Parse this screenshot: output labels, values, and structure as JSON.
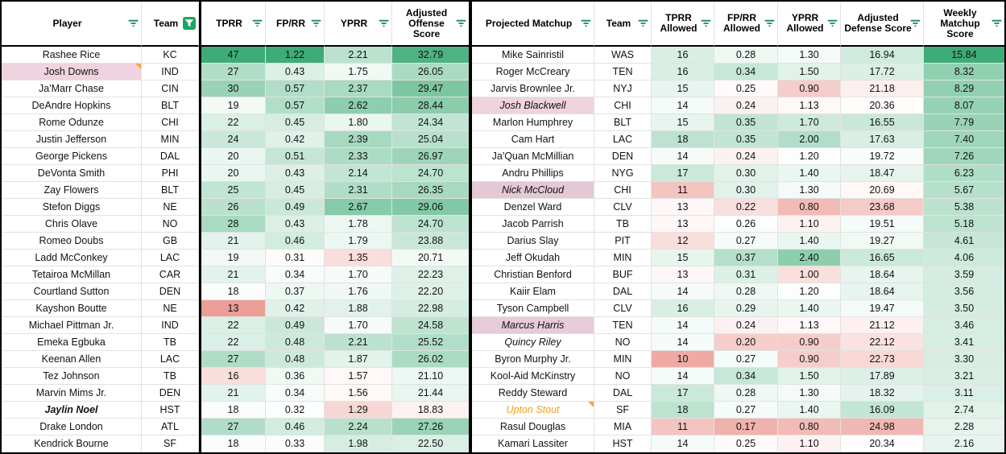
{
  "colors": {
    "scale_green": "#3EAC77",
    "scale_red": "#E67C73",
    "filter_icon_green": "#168A52",
    "filter_active_bg": "#1FA463",
    "note_orange": "#F6A73C",
    "gridline": "#E2E2E2",
    "frame_black": "#000000",
    "highlight_pink": "#EFD3DE",
    "highlight_pink_dark": "#E4C8D5",
    "orange_player_text": "#F49D1E"
  },
  "left_table": {
    "headers": [
      {
        "label": "Player",
        "filter": "normal"
      },
      {
        "label": "Team",
        "filter": "active"
      },
      {
        "label": "TPRR",
        "filter": "normal"
      },
      {
        "label": "FP/RR",
        "filter": "normal"
      },
      {
        "label": "YPRR",
        "filter": "normal"
      },
      {
        "label": "Adjusted Offense Score",
        "filter": "normal"
      }
    ],
    "scales": [
      {
        "min": 11.5,
        "mid": 17.5,
        "max": 41
      },
      {
        "min": 0.15,
        "mid": 0.315,
        "max": 0.95
      },
      {
        "min": 0.55,
        "mid": 1.62,
        "max": 3.3
      },
      {
        "min": 10,
        "mid": 19.8,
        "max": 34
      }
    ],
    "rows": [
      {
        "cells": [
          "Rashee Rice",
          "KC",
          "47",
          "1.22",
          "2.21",
          "32.79"
        ]
      },
      {
        "cells": [
          "Josh Downs",
          "IND",
          "27",
          "0.43",
          "1.75",
          "26.05"
        ],
        "style": {
          "bg": "#EFD3DE",
          "note": true
        }
      },
      {
        "cells": [
          "Ja'Marr Chase",
          "CIN",
          "30",
          "0.57",
          "2.37",
          "29.47"
        ]
      },
      {
        "cells": [
          "DeAndre Hopkins",
          "BLT",
          "19",
          "0.57",
          "2.62",
          "28.44"
        ]
      },
      {
        "cells": [
          "Rome Odunze",
          "CHI",
          "22",
          "0.45",
          "1.80",
          "24.34"
        ]
      },
      {
        "cells": [
          "Justin Jefferson",
          "MIN",
          "24",
          "0.42",
          "2.39",
          "25.04"
        ]
      },
      {
        "cells": [
          "George Pickens",
          "DAL",
          "20",
          "0.51",
          "2.33",
          "26.97"
        ]
      },
      {
        "cells": [
          "DeVonta Smith",
          "PHI",
          "20",
          "0.43",
          "2.14",
          "24.70"
        ]
      },
      {
        "cells": [
          "Zay Flowers",
          "BLT",
          "25",
          "0.45",
          "2.31",
          "26.35"
        ]
      },
      {
        "cells": [
          "Stefon Diggs",
          "NE",
          "26",
          "0.49",
          "2.67",
          "29.06"
        ]
      },
      {
        "cells": [
          "Chris Olave",
          "NO",
          "28",
          "0.43",
          "1.78",
          "24.70"
        ]
      },
      {
        "cells": [
          "Romeo Doubs",
          "GB",
          "21",
          "0.46",
          "1.79",
          "23.88"
        ]
      },
      {
        "cells": [
          "Ladd McConkey",
          "LAC",
          "19",
          "0.31",
          "1.35",
          "20.71"
        ]
      },
      {
        "cells": [
          "Tetairoa McMillan",
          "CAR",
          "21",
          "0.34",
          "1.70",
          "22.23"
        ]
      },
      {
        "cells": [
          "Courtland Sutton",
          "DEN",
          "18",
          "0.37",
          "1.76",
          "22.20"
        ]
      },
      {
        "cells": [
          "Kayshon Boutte",
          "NE",
          "13",
          "0.42",
          "1.88",
          "22.98"
        ]
      },
      {
        "cells": [
          "Michael Pittman Jr.",
          "IND",
          "22",
          "0.49",
          "1.70",
          "24.58"
        ]
      },
      {
        "cells": [
          "Emeka Egbuka",
          "TB",
          "22",
          "0.48",
          "2.21",
          "25.52"
        ]
      },
      {
        "cells": [
          "Keenan Allen",
          "LAC",
          "27",
          "0.48",
          "1.87",
          "26.02"
        ]
      },
      {
        "cells": [
          "Tez Johnson",
          "TB",
          "16",
          "0.36",
          "1.57",
          "21.10"
        ]
      },
      {
        "cells": [
          "Marvin Mims Jr.",
          "DEN",
          "21",
          "0.34",
          "1.56",
          "21.44"
        ]
      },
      {
        "cells": [
          "Jaylin Noel",
          "HST",
          "18",
          "0.32",
          "1.29",
          "18.83"
        ],
        "style": {
          "bold": true,
          "italic": true
        }
      },
      {
        "cells": [
          "Drake London",
          "ATL",
          "27",
          "0.46",
          "2.24",
          "27.26"
        ]
      },
      {
        "cells": [
          "Kendrick Bourne",
          "SF",
          "18",
          "0.33",
          "1.98",
          "22.50"
        ]
      }
    ]
  },
  "right_table": {
    "headers": [
      {
        "label": "Projected Matchup",
        "filter": "normal"
      },
      {
        "label": "Team",
        "filter": "normal"
      },
      {
        "label": "TPRR Allowed",
        "filter": "normal"
      },
      {
        "label": "FP/RR Allowed",
        "filter": "normal"
      },
      {
        "label": "YPRR Allowed",
        "filter": "normal"
      },
      {
        "label": "Adjusted Defense Score",
        "filter": "normal"
      },
      {
        "label": "Weekly Matchup Score",
        "filter": "normal"
      }
    ],
    "scales": [
      {
        "min": 8.2,
        "mid": 13.3,
        "max": 27
      },
      {
        "min": 0.11,
        "mid": 0.255,
        "max": 0.55
      },
      {
        "min": 0.46,
        "mid": 1.17,
        "max": 3.25
      },
      {
        "min": 7,
        "mid": 20.2,
        "max": 28.9,
        "invert": true
      },
      {
        "min": -13,
        "mid": 0.5,
        "max": 14.3
      }
    ],
    "rows": [
      {
        "cells": [
          "Mike Sainristil",
          "WAS",
          "16",
          "0.28",
          "1.30",
          "16.94",
          "15.84"
        ]
      },
      {
        "cells": [
          "Roger McCreary",
          "TEN",
          "16",
          "0.34",
          "1.50",
          "17.72",
          "8.32"
        ]
      },
      {
        "cells": [
          "Jarvis Brownlee Jr.",
          "NYJ",
          "15",
          "0.25",
          "0.90",
          "21.18",
          "8.29"
        ]
      },
      {
        "cells": [
          "Josh Blackwell",
          "CHI",
          "14",
          "0.24",
          "1.13",
          "20.36",
          "8.07"
        ],
        "style": {
          "italic": true,
          "bg": "#EFD3DE"
        }
      },
      {
        "cells": [
          "Marlon Humphrey",
          "BLT",
          "15",
          "0.35",
          "1.70",
          "16.55",
          "7.79"
        ]
      },
      {
        "cells": [
          "Cam Hart",
          "LAC",
          "18",
          "0.35",
          "2.00",
          "17.63",
          "7.40"
        ]
      },
      {
        "cells": [
          "Ja'Quan McMillian",
          "DEN",
          "14",
          "0.24",
          "1.20",
          "19.72",
          "7.26"
        ]
      },
      {
        "cells": [
          "Andru Phillips",
          "NYG",
          "17",
          "0.30",
          "1.40",
          "18.47",
          "6.23"
        ]
      },
      {
        "cells": [
          "Nick McCloud",
          "CHI",
          "11",
          "0.30",
          "1.30",
          "20.69",
          "5.67"
        ],
        "style": {
          "italic": true,
          "bg": "#E4C8D5"
        }
      },
      {
        "cells": [
          "Denzel Ward",
          "CLV",
          "13",
          "0.22",
          "0.80",
          "23.68",
          "5.38"
        ]
      },
      {
        "cells": [
          "Jacob Parrish",
          "TB",
          "13",
          "0.26",
          "1.10",
          "19.51",
          "5.18"
        ]
      },
      {
        "cells": [
          "Darius Slay",
          "PIT",
          "12",
          "0.27",
          "1.40",
          "19.27",
          "4.61"
        ]
      },
      {
        "cells": [
          "Jeff Okudah",
          "MIN",
          "15",
          "0.37",
          "2.40",
          "16.65",
          "4.06"
        ]
      },
      {
        "cells": [
          "Christian Benford",
          "BUF",
          "13",
          "0.31",
          "1.00",
          "18.64",
          "3.59"
        ]
      },
      {
        "cells": [
          "Kaiir Elam",
          "DAL",
          "14",
          "0.28",
          "1.20",
          "18.64",
          "3.56"
        ]
      },
      {
        "cells": [
          "Tyson Campbell",
          "CLV",
          "16",
          "0.29",
          "1.40",
          "19.47",
          "3.50"
        ]
      },
      {
        "cells": [
          "Marcus Harris",
          "TEN",
          "14",
          "0.24",
          "1.13",
          "21.12",
          "3.46"
        ],
        "style": {
          "italic": true,
          "bg": "#E7CBD8"
        }
      },
      {
        "cells": [
          "Quincy Riley",
          "NO",
          "14",
          "0.20",
          "0.90",
          "22.12",
          "3.41"
        ],
        "style": {
          "italic": true
        }
      },
      {
        "cells": [
          "Byron Murphy Jr.",
          "MIN",
          "10",
          "0.27",
          "0.90",
          "22.73",
          "3.30"
        ]
      },
      {
        "cells": [
          "Kool-Aid McKinstry",
          "NO",
          "14",
          "0.34",
          "1.50",
          "17.89",
          "3.21"
        ]
      },
      {
        "cells": [
          "Reddy Steward",
          "DAL",
          "17",
          "0.28",
          "1.30",
          "18.32",
          "3.11"
        ]
      },
      {
        "cells": [
          "Upton Stout",
          "SF",
          "18",
          "0.27",
          "1.40",
          "16.09",
          "2.74"
        ],
        "style": {
          "italic": true,
          "color": "#F49D1E",
          "note": true
        }
      },
      {
        "cells": [
          "Rasul Douglas",
          "MIA",
          "11",
          "0.17",
          "0.80",
          "24.98",
          "2.28"
        ]
      },
      {
        "cells": [
          "Kamari Lassiter",
          "HST",
          "14",
          "0.25",
          "1.10",
          "20.34",
          "2.16"
        ]
      }
    ]
  }
}
